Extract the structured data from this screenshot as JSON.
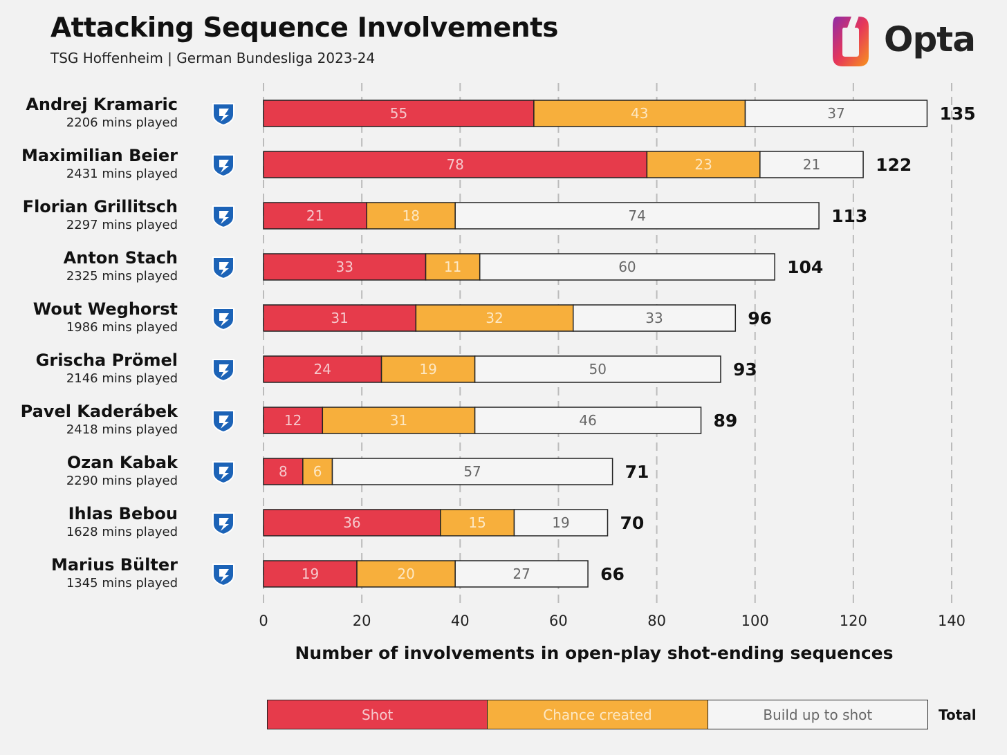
{
  "header": {
    "title": "Attacking Sequence Involvements",
    "subtitle": "TSG Hoffenheim | German Bundesliga 2023-24",
    "brand": "Opta"
  },
  "colors": {
    "shot": "#e63b4b",
    "chance": "#f7af3c",
    "buildup": "#f5f5f5",
    "background": "#f2f2f2",
    "shot_text": "#f6c9cd",
    "chance_text": "#fde8c4",
    "buildup_text": "#666666",
    "crest": "#1c63b7"
  },
  "legend": {
    "shot": "Shot",
    "chance": "Chance created",
    "buildup": "Build up to shot",
    "total": "Total"
  },
  "chart_data": {
    "type": "bar",
    "orientation": "horizontal",
    "stacked": true,
    "xlabel": "Number of involvements in open-play shot-ending sequences",
    "xlim": [
      0,
      140
    ],
    "xticks": [
      0,
      20,
      40,
      60,
      80,
      100,
      120,
      140
    ],
    "grid": true,
    "legend_position": "bottom",
    "categories": [
      "Andrej Kramaric",
      "Maximilian Beier",
      "Florian Grillitsch",
      "Anton Stach",
      "Wout Weghorst",
      "Grischa Prömel",
      "Pavel Kaderábek",
      "Ozan Kabak",
      "Ihlas Bebou",
      "Marius Bülter"
    ],
    "minutes": [
      "2206 mins played",
      "2431 mins played",
      "2297 mins played",
      "2325 mins played",
      "1986 mins played",
      "2146 mins played",
      "2418 mins played",
      "2290 mins played",
      "1628 mins played",
      "1345 mins played"
    ],
    "series": [
      {
        "name": "Shot",
        "values": [
          55,
          78,
          21,
          33,
          31,
          24,
          12,
          8,
          36,
          19
        ]
      },
      {
        "name": "Chance created",
        "values": [
          43,
          23,
          18,
          11,
          32,
          19,
          31,
          6,
          15,
          20
        ]
      },
      {
        "name": "Build up to shot",
        "values": [
          37,
          21,
          74,
          60,
          33,
          50,
          46,
          57,
          19,
          27
        ]
      }
    ],
    "totals": [
      135,
      122,
      113,
      104,
      96,
      93,
      89,
      71,
      70,
      66
    ]
  }
}
